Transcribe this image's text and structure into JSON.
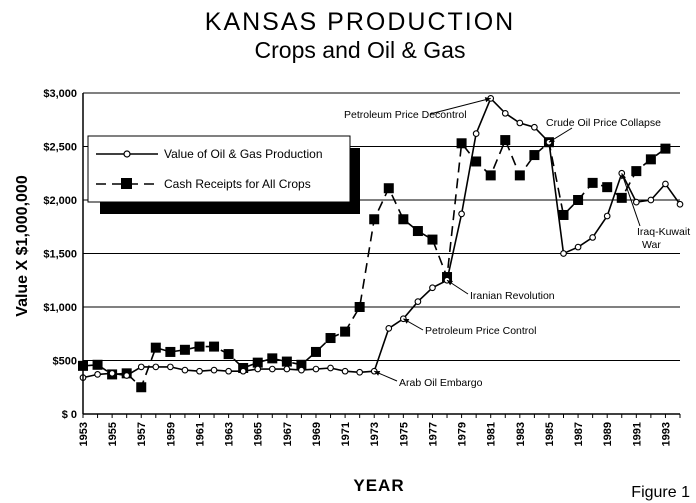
{
  "chart_data": {
    "type": "line",
    "title": "KANSAS PRODUCTION",
    "subtitle": "Crops and Oil & Gas",
    "xlabel": "YEAR",
    "ylabel": "Value X $1,000,000",
    "figure_label": "Figure 1",
    "ylim": [
      0,
      3000
    ],
    "xlim": [
      1953,
      1994
    ],
    "grid": "horizontal",
    "y_ticks": [
      {
        "value": 0,
        "label": "$ 0"
      },
      {
        "value": 500,
        "label": "$500"
      },
      {
        "value": 1000,
        "label": "$1,000"
      },
      {
        "value": 1500,
        "label": "$1,500"
      },
      {
        "value": 2000,
        "label": "$2,000"
      },
      {
        "value": 2500,
        "label": "$2,500"
      },
      {
        "value": 3000,
        "label": "$3,000"
      }
    ],
    "x_ticks": [
      "1953",
      "1955",
      "1957",
      "1959",
      "1961",
      "1963",
      "1965",
      "1967",
      "1969",
      "1971",
      "1973",
      "1975",
      "1977",
      "1979",
      "1981",
      "1983",
      "1985",
      "1987",
      "1989",
      "1991",
      "1993"
    ],
    "legend_position": "upper-left",
    "series": [
      {
        "name": "Value of Oil & Gas Production",
        "style": "solid line, open circle markers",
        "x": [
          1953,
          1954,
          1955,
          1956,
          1957,
          1958,
          1959,
          1960,
          1961,
          1962,
          1963,
          1964,
          1965,
          1966,
          1967,
          1968,
          1969,
          1970,
          1971,
          1972,
          1973,
          1974,
          1975,
          1976,
          1977,
          1978,
          1979,
          1980,
          1981,
          1982,
          1983,
          1984,
          1985,
          1986,
          1987,
          1988,
          1989,
          1990,
          1991,
          1992,
          1993,
          1994
        ],
        "values": [
          340,
          370,
          380,
          360,
          440,
          440,
          440,
          410,
          400,
          410,
          400,
          400,
          420,
          420,
          420,
          410,
          420,
          430,
          400,
          390,
          400,
          800,
          890,
          1050,
          1180,
          1250,
          1870,
          2620,
          2950,
          2810,
          2720,
          2680,
          2540,
          1500,
          1560,
          1650,
          1850,
          2250,
          1980,
          2000,
          2150,
          1960
        ]
      },
      {
        "name": "Cash Receipts for All Crops",
        "style": "dashed line, filled square markers",
        "x": [
          1953,
          1954,
          1955,
          1956,
          1957,
          1958,
          1959,
          1960,
          1961,
          1962,
          1963,
          1964,
          1965,
          1966,
          1967,
          1968,
          1969,
          1970,
          1971,
          1972,
          1973,
          1974,
          1975,
          1976,
          1977,
          1978,
          1979,
          1980,
          1981,
          1982,
          1983,
          1984,
          1985,
          1986,
          1987,
          1988,
          1989,
          1990,
          1991,
          1992,
          1993
        ],
        "values": [
          450,
          460,
          370,
          380,
          250,
          620,
          580,
          600,
          630,
          630,
          560,
          430,
          480,
          520,
          490,
          460,
          580,
          710,
          770,
          1000,
          1820,
          2110,
          1820,
          1710,
          1630,
          1280,
          2530,
          2360,
          2230,
          2560,
          2230,
          2420,
          2540,
          1860,
          2000,
          2160,
          2120,
          2020,
          2270,
          2380,
          2480
        ]
      }
    ],
    "annotations": [
      {
        "text": "Petroleum Price Decontrol",
        "x": 1981,
        "y": 2950
      },
      {
        "text": "Crude Oil Price Collapse",
        "x": 1985,
        "y": 2540
      },
      {
        "text": "Iraq-Kuwait",
        "x": 1990,
        "y": 2250
      },
      {
        "text": "War",
        "x": 1990,
        "y": 2250
      },
      {
        "text": "Iranian Revolution",
        "x": 1978,
        "y": 1250
      },
      {
        "text": "Petroleum Price Control",
        "x": 1975,
        "y": 890
      },
      {
        "text": "Arab Oil Embargo",
        "x": 1973,
        "y": 400
      }
    ]
  }
}
